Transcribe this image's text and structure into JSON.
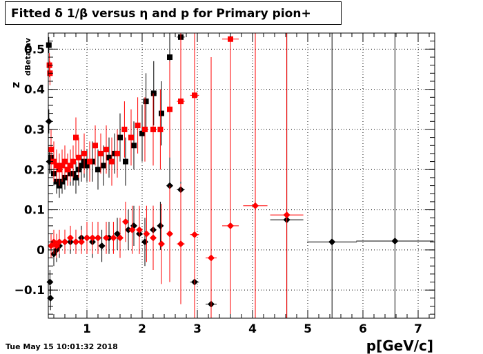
{
  "chart_data": {
    "type": "scatter",
    "title": "Fitted δ 1/β versus η and p for Primary pion+",
    "xlabel": "p[GeV/c]",
    "ylabel": "z",
    "ylabel_sub": "dBetainv",
    "xlim": [
      0.3,
      7.3
    ],
    "ylim": [
      -0.17,
      0.54
    ],
    "x_ticks": [
      "1",
      "2",
      "3",
      "4",
      "5",
      "6",
      "7"
    ],
    "y_ticks": [
      "−0.1",
      "0",
      "0.1",
      "0.2",
      "0.3",
      "0.4",
      "0.5"
    ],
    "grid": true,
    "series": [
      {
        "color": "#000000",
        "marker": "square",
        "points": [
          {
            "x": 0.31,
            "y": 0.51,
            "ey": 0.02,
            "ex": 0.01
          },
          {
            "x": 0.35,
            "y": 0.23,
            "ey": 0.04,
            "ex": 0.01
          },
          {
            "x": 0.4,
            "y": 0.19,
            "ey": 0.03,
            "ex": 0.01
          },
          {
            "x": 0.45,
            "y": 0.17,
            "ey": 0.03,
            "ex": 0.01
          },
          {
            "x": 0.5,
            "y": 0.16,
            "ey": 0.03,
            "ex": 0.01
          },
          {
            "x": 0.55,
            "y": 0.17,
            "ey": 0.03,
            "ex": 0.01
          },
          {
            "x": 0.6,
            "y": 0.18,
            "ey": 0.03,
            "ex": 0.01
          },
          {
            "x": 0.65,
            "y": 0.2,
            "ey": 0.03,
            "ex": 0.01
          },
          {
            "x": 0.7,
            "y": 0.19,
            "ey": 0.03,
            "ex": 0.01
          },
          {
            "x": 0.75,
            "y": 0.19,
            "ey": 0.03,
            "ex": 0.01
          },
          {
            "x": 0.8,
            "y": 0.18,
            "ey": 0.04,
            "ex": 0.01
          },
          {
            "x": 0.85,
            "y": 0.2,
            "ey": 0.04,
            "ex": 0.02
          },
          {
            "x": 0.9,
            "y": 0.21,
            "ey": 0.04,
            "ex": 0.02
          },
          {
            "x": 0.95,
            "y": 0.22,
            "ey": 0.04,
            "ex": 0.02
          },
          {
            "x": 1.0,
            "y": 0.21,
            "ey": 0.04,
            "ex": 0.02
          },
          {
            "x": 1.1,
            "y": 0.22,
            "ey": 0.05,
            "ex": 0.02
          },
          {
            "x": 1.2,
            "y": 0.2,
            "ey": 0.05,
            "ex": 0.02
          },
          {
            "x": 1.3,
            "y": 0.21,
            "ey": 0.05,
            "ex": 0.03
          },
          {
            "x": 1.4,
            "y": 0.23,
            "ey": 0.05,
            "ex": 0.03
          },
          {
            "x": 1.5,
            "y": 0.24,
            "ey": 0.05,
            "ex": 0.03
          },
          {
            "x": 1.6,
            "y": 0.28,
            "ey": 0.06,
            "ex": 0.03
          },
          {
            "x": 1.7,
            "y": 0.22,
            "ey": 0.06,
            "ex": 0.03
          },
          {
            "x": 1.85,
            "y": 0.26,
            "ey": 0.06,
            "ex": 0.04
          },
          {
            "x": 2.0,
            "y": 0.29,
            "ey": 0.07,
            "ex": 0.04
          },
          {
            "x": 2.07,
            "y": 0.37,
            "ey": 0.07,
            "ex": 0.04
          },
          {
            "x": 2.21,
            "y": 0.39,
            "ey": 0.08,
            "ex": 0.05
          },
          {
            "x": 2.35,
            "y": 0.34,
            "ey": 0.08,
            "ex": 0.05
          },
          {
            "x": 2.5,
            "y": 0.48,
            "ey": 0.1,
            "ex": 0.05
          },
          {
            "x": 2.7,
            "y": 0.53,
            "ey": 0.12,
            "ex": 0.07
          }
        ]
      },
      {
        "color": "#000000",
        "marker": "diamond",
        "points": [
          {
            "x": 0.31,
            "y": 0.32,
            "ey": 0.03,
            "ex": 0.01
          },
          {
            "x": 0.32,
            "y": 0.22,
            "ey": 0.03,
            "ex": 0.01
          },
          {
            "x": 0.33,
            "y": -0.08,
            "ey": 0.03,
            "ex": 0.01
          },
          {
            "x": 0.34,
            "y": -0.12,
            "ey": 0.03,
            "ex": 0.01
          },
          {
            "x": 0.4,
            "y": -0.01,
            "ey": 0.03,
            "ex": 0.01
          },
          {
            "x": 0.45,
            "y": 0.0,
            "ey": 0.03,
            "ex": 0.01
          },
          {
            "x": 0.5,
            "y": 0.01,
            "ey": 0.03,
            "ex": 0.01
          },
          {
            "x": 0.6,
            "y": 0.02,
            "ey": 0.03,
            "ex": 0.01
          },
          {
            "x": 0.7,
            "y": 0.02,
            "ey": 0.03,
            "ex": 0.01
          },
          {
            "x": 0.8,
            "y": 0.02,
            "ey": 0.03,
            "ex": 0.01
          },
          {
            "x": 0.9,
            "y": 0.03,
            "ey": 0.03,
            "ex": 0.02
          },
          {
            "x": 1.0,
            "y": 0.03,
            "ey": 0.04,
            "ex": 0.02
          },
          {
            "x": 1.1,
            "y": 0.02,
            "ey": 0.04,
            "ex": 0.02
          },
          {
            "x": 1.2,
            "y": 0.03,
            "ey": 0.04,
            "ex": 0.02
          },
          {
            "x": 1.27,
            "y": 0.01,
            "ey": 0.04,
            "ex": 0.03
          },
          {
            "x": 1.4,
            "y": 0.03,
            "ey": 0.04,
            "ex": 0.03
          },
          {
            "x": 1.55,
            "y": 0.04,
            "ey": 0.04,
            "ex": 0.03
          },
          {
            "x": 1.75,
            "y": 0.05,
            "ey": 0.05,
            "ex": 0.03
          },
          {
            "x": 1.85,
            "y": 0.06,
            "ey": 0.05,
            "ex": 0.04
          },
          {
            "x": 1.95,
            "y": 0.04,
            "ey": 0.05,
            "ex": 0.04
          },
          {
            "x": 2.05,
            "y": 0.02,
            "ey": 0.06,
            "ex": 0.04
          },
          {
            "x": 2.2,
            "y": 0.05,
            "ey": 0.06,
            "ex": 0.05
          },
          {
            "x": 2.33,
            "y": 0.06,
            "ey": 0.06,
            "ex": 0.05
          },
          {
            "x": 2.5,
            "y": 0.16,
            "ey": 0.08,
            "ex": 0.05
          },
          {
            "x": 2.7,
            "y": 0.15,
            "ey": 0.27,
            "ex": 0.07
          },
          {
            "x": 2.95,
            "y": -0.08,
            "ey": 0.15,
            "ex": 0.08
          },
          {
            "x": 3.25,
            "y": -0.135,
            "ey": 0.2,
            "ex": 0.1
          },
          {
            "x": 4.62,
            "y": 0.075,
            "ey": 0.7,
            "ex": 0.3
          },
          {
            "x": 5.44,
            "y": 0.02,
            "ey": 0.7,
            "ex": 0.45
          },
          {
            "x": 6.58,
            "y": 0.022,
            "ey": 0.7,
            "ex": 0.7
          }
        ]
      },
      {
        "color": "#ff0000",
        "marker": "square",
        "points": [
          {
            "x": 0.32,
            "y": 0.46,
            "ey": 0.03,
            "ex": 0.01
          },
          {
            "x": 0.33,
            "y": 0.44,
            "ey": 0.03,
            "ex": 0.01
          },
          {
            "x": 0.35,
            "y": 0.25,
            "ey": 0.05,
            "ex": 0.01
          },
          {
            "x": 0.4,
            "y": 0.22,
            "ey": 0.05,
            "ex": 0.01
          },
          {
            "x": 0.45,
            "y": 0.21,
            "ey": 0.04,
            "ex": 0.01
          },
          {
            "x": 0.5,
            "y": 0.2,
            "ey": 0.04,
            "ex": 0.01
          },
          {
            "x": 0.55,
            "y": 0.21,
            "ey": 0.04,
            "ex": 0.01
          },
          {
            "x": 0.6,
            "y": 0.22,
            "ey": 0.04,
            "ex": 0.01
          },
          {
            "x": 0.65,
            "y": 0.2,
            "ey": 0.04,
            "ex": 0.01
          },
          {
            "x": 0.7,
            "y": 0.21,
            "ey": 0.04,
            "ex": 0.01
          },
          {
            "x": 0.75,
            "y": 0.22,
            "ey": 0.04,
            "ex": 0.01
          },
          {
            "x": 0.8,
            "y": 0.28,
            "ey": 0.05,
            "ex": 0.01
          },
          {
            "x": 0.85,
            "y": 0.23,
            "ey": 0.05,
            "ex": 0.02
          },
          {
            "x": 0.95,
            "y": 0.24,
            "ey": 0.05,
            "ex": 0.02
          },
          {
            "x": 1.05,
            "y": 0.22,
            "ey": 0.05,
            "ex": 0.02
          },
          {
            "x": 1.15,
            "y": 0.26,
            "ey": 0.05,
            "ex": 0.02
          },
          {
            "x": 1.25,
            "y": 0.24,
            "ey": 0.05,
            "ex": 0.02
          },
          {
            "x": 1.35,
            "y": 0.25,
            "ey": 0.06,
            "ex": 0.03
          },
          {
            "x": 1.45,
            "y": 0.22,
            "ey": 0.06,
            "ex": 0.03
          },
          {
            "x": 1.55,
            "y": 0.24,
            "ey": 0.06,
            "ex": 0.03
          },
          {
            "x": 1.68,
            "y": 0.3,
            "ey": 0.07,
            "ex": 0.03
          },
          {
            "x": 1.8,
            "y": 0.28,
            "ey": 0.07,
            "ex": 0.04
          },
          {
            "x": 1.92,
            "y": 0.31,
            "ey": 0.07,
            "ex": 0.04
          },
          {
            "x": 2.05,
            "y": 0.3,
            "ey": 0.08,
            "ex": 0.04
          },
          {
            "x": 2.2,
            "y": 0.3,
            "ey": 0.09,
            "ex": 0.05
          },
          {
            "x": 2.33,
            "y": 0.3,
            "ey": 0.1,
            "ex": 0.05
          },
          {
            "x": 2.5,
            "y": 0.35,
            "ey": 0.12,
            "ex": 0.05
          },
          {
            "x": 2.7,
            "y": 0.37,
            "ey": 0.2,
            "ex": 0.07
          },
          {
            "x": 2.95,
            "y": 0.385,
            "ey": 0.3,
            "ex": 0.08
          },
          {
            "x": 3.6,
            "y": 0.525,
            "ey": 0.7,
            "ex": 0.15
          }
        ]
      },
      {
        "color": "#ff0000",
        "marker": "diamond",
        "points": [
          {
            "x": 0.35,
            "y": 0.01,
            "ey": 0.03,
            "ex": 0.01
          },
          {
            "x": 0.4,
            "y": 0.02,
            "ey": 0.03,
            "ex": 0.01
          },
          {
            "x": 0.45,
            "y": 0.01,
            "ey": 0.03,
            "ex": 0.01
          },
          {
            "x": 0.5,
            "y": 0.02,
            "ey": 0.03,
            "ex": 0.01
          },
          {
            "x": 0.6,
            "y": 0.02,
            "ey": 0.03,
            "ex": 0.01
          },
          {
            "x": 0.7,
            "y": 0.03,
            "ey": 0.03,
            "ex": 0.01
          },
          {
            "x": 0.8,
            "y": 0.02,
            "ey": 0.03,
            "ex": 0.01
          },
          {
            "x": 0.9,
            "y": 0.02,
            "ey": 0.03,
            "ex": 0.02
          },
          {
            "x": 1.0,
            "y": 0.03,
            "ey": 0.04,
            "ex": 0.02
          },
          {
            "x": 1.1,
            "y": 0.03,
            "ey": 0.04,
            "ex": 0.02
          },
          {
            "x": 1.2,
            "y": 0.03,
            "ey": 0.04,
            "ex": 0.02
          },
          {
            "x": 1.35,
            "y": 0.03,
            "ey": 0.04,
            "ex": 0.03
          },
          {
            "x": 1.48,
            "y": 0.03,
            "ey": 0.04,
            "ex": 0.03
          },
          {
            "x": 1.6,
            "y": 0.03,
            "ey": 0.05,
            "ex": 0.03
          },
          {
            "x": 1.7,
            "y": 0.07,
            "ey": 0.05,
            "ex": 0.03
          },
          {
            "x": 1.82,
            "y": 0.05,
            "ey": 0.06,
            "ex": 0.04
          },
          {
            "x": 1.95,
            "y": 0.05,
            "ey": 0.06,
            "ex": 0.04
          },
          {
            "x": 2.08,
            "y": 0.04,
            "ey": 0.07,
            "ex": 0.04
          },
          {
            "x": 2.2,
            "y": 0.03,
            "ey": 0.08,
            "ex": 0.05
          },
          {
            "x": 2.35,
            "y": 0.015,
            "ey": 0.1,
            "ex": 0.05
          },
          {
            "x": 2.5,
            "y": 0.04,
            "ey": 0.12,
            "ex": 0.05
          },
          {
            "x": 2.7,
            "y": 0.015,
            "ey": 0.15,
            "ex": 0.07
          },
          {
            "x": 2.95,
            "y": 0.038,
            "ey": 0.3,
            "ex": 0.08
          },
          {
            "x": 3.25,
            "y": -0.02,
            "ey": 0.5,
            "ex": 0.1
          },
          {
            "x": 3.6,
            "y": 0.06,
            "ey": 0.6,
            "ex": 0.15
          },
          {
            "x": 4.05,
            "y": 0.11,
            "ey": 0.7,
            "ex": 0.22
          },
          {
            "x": 4.62,
            "y": 0.087,
            "ey": 0.7,
            "ex": 0.3
          }
        ]
      }
    ]
  },
  "footer": {
    "timestamp": "Tue May 15 10:01:32 2018"
  }
}
